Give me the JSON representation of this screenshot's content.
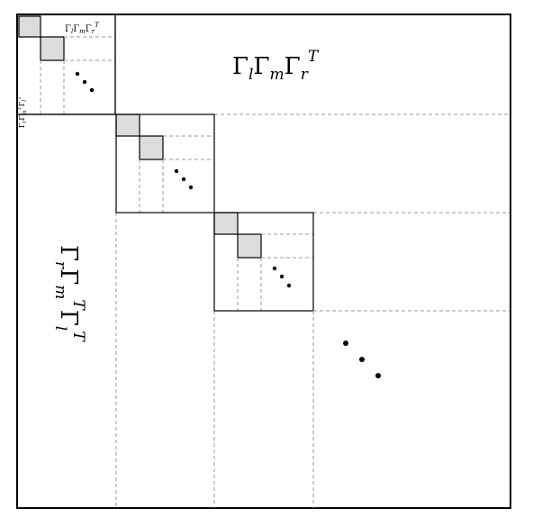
{
  "labels": {
    "upper_big": "ΓlΓmΓrT",
    "lower_big": "ΓrΓmTΓlT",
    "upper_small": "ΓlΓmΓrT",
    "lower_small": "ΓrΓmTΓlT"
  },
  "math": {
    "gamma": "Γ",
    "sub_l": "l",
    "sub_m": "m",
    "sub_r": "r",
    "sup_T": "T"
  },
  "colors": {
    "shade": "#dcdcdc",
    "dashed": "#9a9a9a",
    "line": "#000000"
  }
}
